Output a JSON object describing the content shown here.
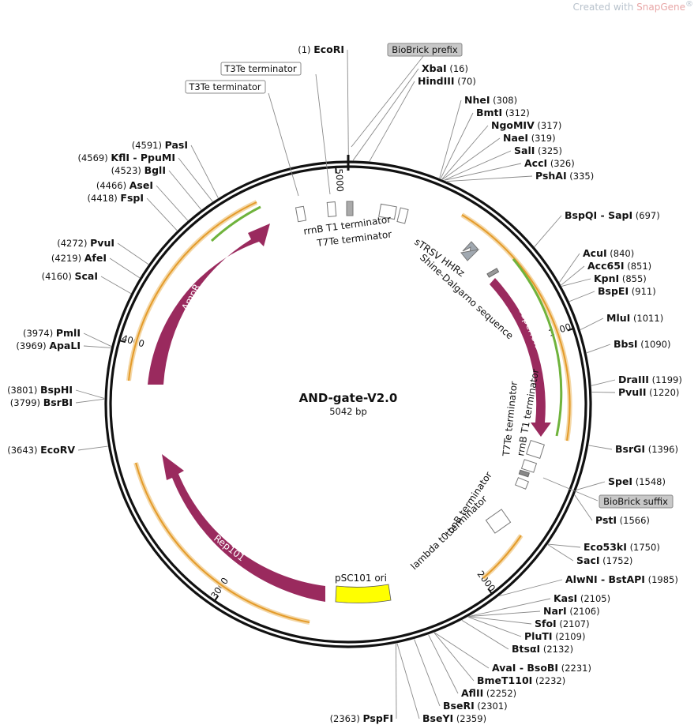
{
  "watermark": {
    "prefix": "Created with ",
    "brand": "SnapGene",
    "reg": "®"
  },
  "plasmid": {
    "name": "AND-gate-V2.0",
    "length_label": "5042 bp",
    "length": 5042
  },
  "ticks": [
    {
      "bp": 1000,
      "label": "1000"
    },
    {
      "bp": 2000,
      "label": "2000"
    },
    {
      "bp": 3000,
      "label": "3000"
    },
    {
      "bp": 4000,
      "label": "4000"
    },
    {
      "bp": 5000,
      "label": "5000"
    }
  ],
  "sites": [
    {
      "name": "EcoRI",
      "pos": "(1)"
    },
    {
      "name": "XbaI",
      "pos": "(16)"
    },
    {
      "name": "HindIII",
      "pos": "(70)"
    },
    {
      "name": "NheI",
      "pos": "(308)"
    },
    {
      "name": "BmtI",
      "pos": "(312)"
    },
    {
      "name": "NgoMIV",
      "pos": "(317)"
    },
    {
      "name": "NaeI",
      "pos": "(319)"
    },
    {
      "name": "SalI",
      "pos": "(325)"
    },
    {
      "name": "AccI",
      "pos": "(326)"
    },
    {
      "name": "PshAI",
      "pos": "(335)"
    },
    {
      "name": "BspQI - SapI",
      "pos": "(697)"
    },
    {
      "name": "AcuI",
      "pos": "(840)"
    },
    {
      "name": "Acc65I",
      "pos": "(851)"
    },
    {
      "name": "KpnI",
      "pos": "(855)"
    },
    {
      "name": "BspEI",
      "pos": "(911)"
    },
    {
      "name": "MluI",
      "pos": "(1011)"
    },
    {
      "name": "BbsI",
      "pos": "(1090)"
    },
    {
      "name": "DraIII",
      "pos": "(1199)"
    },
    {
      "name": "PvuII",
      "pos": "(1220)"
    },
    {
      "name": "BsrGI",
      "pos": "(1396)"
    },
    {
      "name": "SpeI",
      "pos": "(1548)"
    },
    {
      "name": "PstI",
      "pos": "(1566)"
    },
    {
      "name": "Eco53kI",
      "pos": "(1750)"
    },
    {
      "name": "SacI",
      "pos": "(1752)"
    },
    {
      "name": "AlwNI - BstAPI",
      "pos": "(1985)"
    },
    {
      "name": "KasI",
      "pos": "(2105)"
    },
    {
      "name": "NarI",
      "pos": "(2106)"
    },
    {
      "name": "SfoI",
      "pos": "(2107)"
    },
    {
      "name": "PluTI",
      "pos": "(2109)"
    },
    {
      "name": "BtsαI",
      "pos": "(2132)"
    },
    {
      "name": "AvaI - BsoBI",
      "pos": "(2231)"
    },
    {
      "name": "BmeT110I",
      "pos": "(2232)"
    },
    {
      "name": "AflII",
      "pos": "(2252)"
    },
    {
      "name": "BseRI",
      "pos": "(2301)"
    },
    {
      "name": "BseYI",
      "pos": "(2359)"
    },
    {
      "name": "PspFI",
      "pos": "(2363)"
    },
    {
      "name": "EcoRV",
      "pos": "(3643)"
    },
    {
      "name": "BsrBI",
      "pos": "(3799)"
    },
    {
      "name": "BspHI",
      "pos": "(3801)"
    },
    {
      "name": "ApaLI",
      "pos": "(3969)"
    },
    {
      "name": "PmlI",
      "pos": "(3974)"
    },
    {
      "name": "ScaI",
      "pos": "(4160)"
    },
    {
      "name": "AfeI",
      "pos": "(4219)"
    },
    {
      "name": "PvuI",
      "pos": "(4272)"
    },
    {
      "name": "FspI",
      "pos": "(4418)"
    },
    {
      "name": "AseI",
      "pos": "(4466)"
    },
    {
      "name": "BglI",
      "pos": "(4523)"
    },
    {
      "name": "KflI - PpuMI",
      "pos": "(4569)"
    },
    {
      "name": "PasI",
      "pos": "(4591)"
    }
  ],
  "boxed_labels": {
    "biobrick_prefix": "BioBrick prefix",
    "biobrick_suffix": "BioBrick suffix",
    "t3te_1": "T3Te terminator",
    "t3te_2": "T3Te terminator"
  },
  "features": {
    "rrnb_top": "rrnB T1 terminator",
    "t7te_top": "T7Te terminator",
    "strsv": "sTRSV HHRz",
    "shine": "Shine-Dalgarno sequence",
    "sfgfp": "superfolder GFP",
    "t7te_right": "T7Te terminator",
    "rrnb_right": "rrnB T1 terminator",
    "tonb": "tonB terminator",
    "lambda": "lambda t0 terminator",
    "psc101": "pSC101 ori",
    "rep101": "Rep101",
    "ampr": "AmpR"
  },
  "colors": {
    "cds": "#9a2a5e",
    "origin": "#ffff00",
    "primer_orange": "#e8a33a",
    "primer_green": "#5aa02c",
    "backbone": "#111111"
  }
}
